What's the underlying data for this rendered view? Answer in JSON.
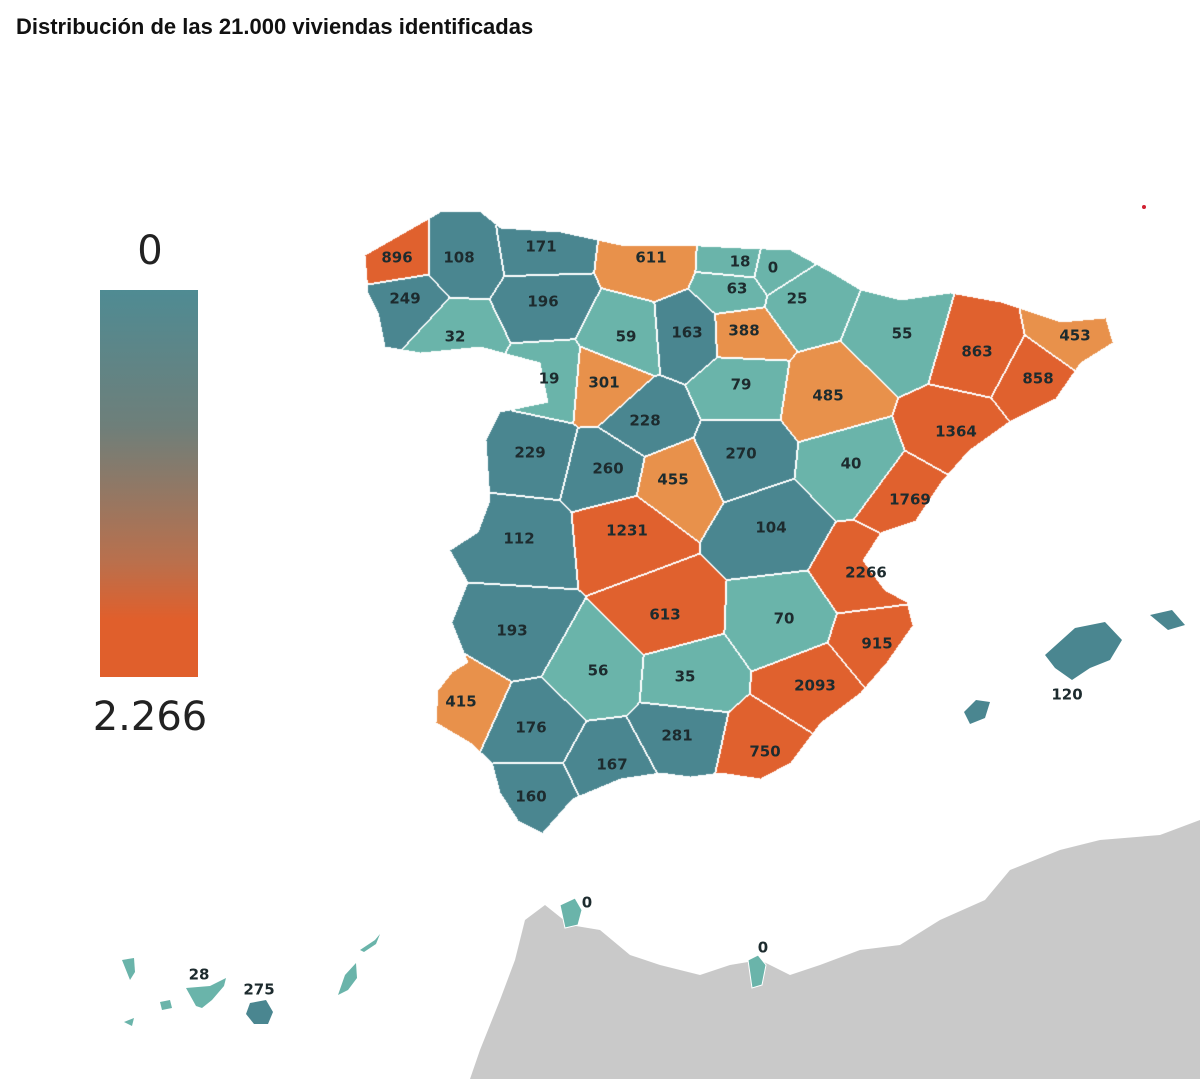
{
  "title": "Distribución de las 21.000 viviendas identificadas",
  "legend": {
    "min_label": "0",
    "max_label": "2.266",
    "min_value": 0,
    "max_value": 2266,
    "color_low": "#4f8b93",
    "color_high": "#e05f2c"
  },
  "colors": {
    "light_teal": "#6ab4aa",
    "dark_teal": "#4a8690",
    "light_orange": "#e8914b",
    "dark_orange": "#e0612e",
    "africa": "#c9c9c9"
  },
  "provinces": [
    {
      "value": 896,
      "label": "896"
    },
    {
      "value": 108,
      "label": "108"
    },
    {
      "value": 171,
      "label": "171"
    },
    {
      "value": 249,
      "label": "249"
    },
    {
      "value": 32,
      "label": "32"
    },
    {
      "value": 196,
      "label": "196"
    },
    {
      "value": 611,
      "label": "611"
    },
    {
      "value": 18,
      "label": "18"
    },
    {
      "value": 0,
      "label": "0"
    },
    {
      "value": 63,
      "label": "63"
    },
    {
      "value": 25,
      "label": "25"
    },
    {
      "value": 59,
      "label": "59"
    },
    {
      "value": 163,
      "label": "163"
    },
    {
      "value": 388,
      "label": "388"
    },
    {
      "value": 55,
      "label": "55"
    },
    {
      "value": 863,
      "label": "863"
    },
    {
      "value": 453,
      "label": "453"
    },
    {
      "value": 858,
      "label": "858"
    },
    {
      "value": 19,
      "label": "19"
    },
    {
      "value": 301,
      "label": "301"
    },
    {
      "value": 79,
      "label": "79"
    },
    {
      "value": 485,
      "label": "485"
    },
    {
      "value": 228,
      "label": "228"
    },
    {
      "value": 1364,
      "label": "1364"
    },
    {
      "value": 229,
      "label": "229"
    },
    {
      "value": 260,
      "label": "260"
    },
    {
      "value": 455,
      "label": "455"
    },
    {
      "value": 270,
      "label": "270"
    },
    {
      "value": 40,
      "label": "40"
    },
    {
      "value": 1769,
      "label": "1769"
    },
    {
      "value": 112,
      "label": "112"
    },
    {
      "value": 1231,
      "label": "1231"
    },
    {
      "value": 104,
      "label": "104"
    },
    {
      "value": 2266,
      "label": "2266"
    },
    {
      "value": 193,
      "label": "193"
    },
    {
      "value": 613,
      "label": "613"
    },
    {
      "value": 70,
      "label": "70"
    },
    {
      "value": 915,
      "label": "915"
    },
    {
      "value": 2093,
      "label": "2093"
    },
    {
      "value": 56,
      "label": "56"
    },
    {
      "value": 35,
      "label": "35"
    },
    {
      "value": 415,
      "label": "415"
    },
    {
      "value": 176,
      "label": "176"
    },
    {
      "value": 281,
      "label": "281"
    },
    {
      "value": 750,
      "label": "750"
    },
    {
      "value": 167,
      "label": "167"
    },
    {
      "value": 160,
      "label": "160"
    }
  ],
  "islands": [
    {
      "name": "baleares",
      "value": 120,
      "label": "120"
    },
    {
      "name": "santa-cruz-de-tenerife",
      "value": 28,
      "label": "28"
    },
    {
      "name": "las-palmas",
      "value": 275,
      "label": "275"
    },
    {
      "name": "ceuta",
      "value": 0,
      "label": "0"
    },
    {
      "name": "melilla",
      "value": 0,
      "label": "0"
    }
  ]
}
